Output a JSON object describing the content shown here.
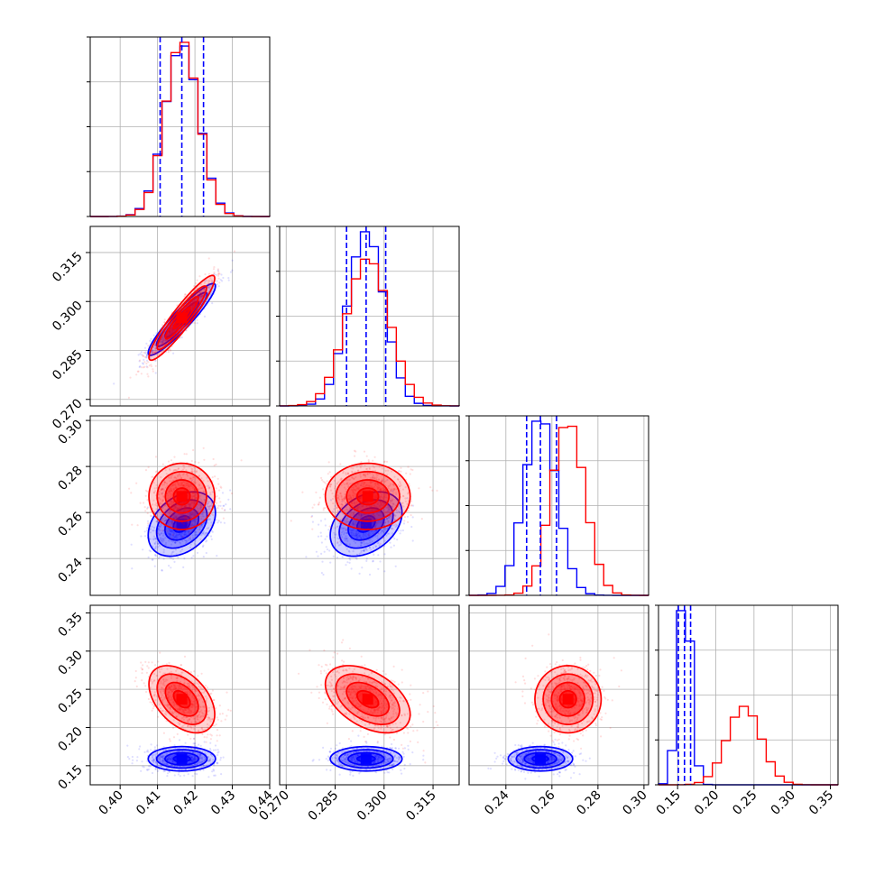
{
  "chart_data": {
    "type": "corner",
    "grid": true,
    "colors": {
      "series_a": "#0000ff",
      "series_b": "#ff0000"
    },
    "parameters": [
      {
        "range": [
          0.392,
          0.44
        ],
        "ticks": [
          0.4,
          0.41,
          0.42,
          0.43,
          0.44
        ],
        "tick_labels": [
          "0.40",
          "0.41",
          "0.42",
          "0.43",
          "0.44"
        ],
        "series_a": {
          "mean": 0.4165,
          "sd": 0.0045
        },
        "series_b": {
          "mean": 0.4165,
          "sd": 0.0044
        },
        "quantiles": [
          0.4107,
          0.4165,
          0.4223
        ]
      },
      {
        "range": [
          0.268,
          0.323
        ],
        "ticks": [
          0.27,
          0.285,
          0.3,
          0.315
        ],
        "tick_labels": [
          "0.270",
          "0.285",
          "0.300",
          "0.315"
        ],
        "series_a": {
          "mean": 0.2945,
          "sd": 0.0055
        },
        "series_b": {
          "mean": 0.295,
          "sd": 0.0065
        },
        "quantiles": [
          0.2885,
          0.2945,
          0.3005
        ]
      },
      {
        "range": [
          0.224,
          0.302
        ],
        "ticks": [
          0.24,
          0.26,
          0.28,
          0.3
        ],
        "tick_labels": [
          "0.24",
          "0.26",
          "0.28",
          "0.30"
        ],
        "series_a": {
          "mean": 0.255,
          "sd": 0.007
        },
        "series_b": {
          "mean": 0.267,
          "sd": 0.0072
        },
        "quantiles": [
          0.249,
          0.255,
          0.262
        ]
      },
      {
        "range": [
          0.125,
          0.36
        ],
        "ticks": [
          0.15,
          0.2,
          0.25,
          0.3,
          0.35
        ],
        "tick_labels": [
          "0.15",
          "0.20",
          "0.25",
          "0.30",
          "0.35"
        ],
        "series_a": {
          "mean": 0.159,
          "sd": 0.008
        },
        "series_b": {
          "mean": 0.237,
          "sd": 0.022
        },
        "quantiles": [
          0.151,
          0.159,
          0.167
        ]
      }
    ],
    "pair_correlations": {
      "1-0": {
        "series_a": 0.93,
        "series_b": 0.93
      },
      "2-0": {
        "series_a": 0.35,
        "series_b": 0.0
      },
      "2-1": {
        "series_a": 0.35,
        "series_b": 0.0
      },
      "3-0": {
        "series_a": 0.0,
        "series_b": -0.45
      },
      "3-1": {
        "series_a": 0.0,
        "series_b": -0.45
      },
      "3-2": {
        "series_a": 0.0,
        "series_b": 0.0
      }
    },
    "histogram_bins": 20
  }
}
